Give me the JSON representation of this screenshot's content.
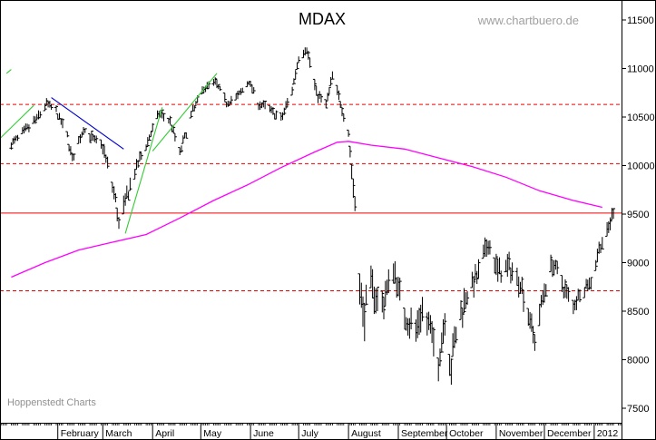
{
  "chart_data": {
    "type": "ohlc",
    "title": "MDAX",
    "watermark": "www.chartbuero.de",
    "credit": "Hoppenstedt Charts",
    "ylim": [
      7350,
      11650
    ],
    "y_ticks": [
      7500,
      8000,
      8500,
      9000,
      9500,
      10000,
      10500,
      11000,
      11500
    ],
    "month_labels": [
      "February",
      "March",
      "April",
      "May",
      "June",
      "July",
      "August",
      "September",
      "October",
      "November",
      "December",
      "2012"
    ],
    "colors": {
      "price": "#000000",
      "moving_average": "#ff00ff",
      "horizontal_levels": "#ee0000",
      "support_trend": "#33cc33",
      "resistance_trend": "#0000cc",
      "frame": "#000000"
    },
    "horizontal_levels": [
      {
        "y": 10630,
        "style": "dashed"
      },
      {
        "y": 10020,
        "style": "dashed"
      },
      {
        "y": 9510,
        "style": "solid"
      },
      {
        "y": 8710,
        "style": "dashed"
      }
    ],
    "segments": [
      {
        "kind": "resistance_trend",
        "from": [
          "2011-01-28",
          10700
        ],
        "to": [
          "2011-03-14",
          10170
        ]
      },
      {
        "kind": "support_trend",
        "from": [
          "2010-12-27",
          10280
        ],
        "to": [
          "2011-01-17",
          10620
        ]
      },
      {
        "kind": "support_trend",
        "from": [
          "2010-12-31",
          10950
        ],
        "to": [
          "2011-01-03",
          10990
        ]
      },
      {
        "kind": "support_trend",
        "from": [
          "2011-03-15",
          9300
        ],
        "to": [
          "2011-04-07",
          10600
        ]
      },
      {
        "kind": "support_trend",
        "from": [
          "2011-04-01",
          10150
        ],
        "to": [
          "2011-05-11",
          10950
        ]
      },
      {
        "kind": "horizontal_level",
        "from": [
          "2011-06-14",
          10400
        ],
        "to": [
          "2011-07-28",
          10400
        ]
      }
    ],
    "moving_average": {
      "name": "",
      "points": [
        [
          "2011-01-03",
          8850
        ],
        [
          "2011-01-24",
          9000
        ],
        [
          "2011-02-14",
          9130
        ],
        [
          "2011-03-07",
          9210
        ],
        [
          "2011-03-28",
          9290
        ],
        [
          "2011-04-18",
          9460
        ],
        [
          "2011-05-09",
          9640
        ],
        [
          "2011-05-30",
          9800
        ],
        [
          "2011-06-20",
          9980
        ],
        [
          "2011-07-11",
          10140
        ],
        [
          "2011-07-25",
          10240
        ],
        [
          "2011-08-01",
          10250
        ],
        [
          "2011-08-15",
          10210
        ],
        [
          "2011-09-05",
          10170
        ],
        [
          "2011-09-26",
          10080
        ],
        [
          "2011-10-17",
          9990
        ],
        [
          "2011-11-07",
          9880
        ],
        [
          "2011-11-28",
          9740
        ],
        [
          "2011-12-19",
          9640
        ],
        [
          "2012-01-06",
          9570
        ]
      ]
    },
    "price_anchors": [
      [
        "2011-01-03",
        10220,
        60
      ],
      [
        "2011-01-10",
        10330,
        60
      ],
      [
        "2011-01-19",
        10480,
        70
      ],
      [
        "2011-01-25",
        10640,
        60
      ],
      [
        "2011-01-31",
        10560,
        60
      ],
      [
        "2011-02-07",
        10300,
        70
      ],
      [
        "2011-02-10",
        10060,
        80
      ],
      [
        "2011-02-17",
        10380,
        60
      ],
      [
        "2011-02-24",
        10250,
        70
      ],
      [
        "2011-03-01",
        10200,
        80
      ],
      [
        "2011-03-04",
        10000,
        90
      ],
      [
        "2011-03-09",
        9650,
        110
      ],
      [
        "2011-03-11",
        9380,
        130
      ],
      [
        "2011-03-16",
        9680,
        120
      ],
      [
        "2011-03-22",
        9980,
        90
      ],
      [
        "2011-03-29",
        10250,
        70
      ],
      [
        "2011-04-05",
        10540,
        60
      ],
      [
        "2011-04-12",
        10460,
        60
      ],
      [
        "2011-04-18",
        10130,
        70
      ],
      [
        "2011-04-26",
        10560,
        60
      ],
      [
        "2011-05-03",
        10800,
        60
      ],
      [
        "2011-05-10",
        10860,
        60
      ],
      [
        "2011-05-17",
        10650,
        60
      ],
      [
        "2011-05-24",
        10710,
        60
      ],
      [
        "2011-05-31",
        10870,
        60
      ],
      [
        "2011-06-06",
        10640,
        60
      ],
      [
        "2011-06-13",
        10580,
        60
      ],
      [
        "2011-06-20",
        10470,
        70
      ],
      [
        "2011-06-27",
        10780,
        70
      ],
      [
        "2011-07-01",
        11120,
        70
      ],
      [
        "2011-07-06",
        11210,
        70
      ],
      [
        "2011-07-12",
        10750,
        80
      ],
      [
        "2011-07-18",
        10620,
        70
      ],
      [
        "2011-07-22",
        10920,
        70
      ],
      [
        "2011-07-27",
        10650,
        70
      ],
      [
        "2011-08-01",
        10340,
        80
      ],
      [
        "2011-08-03",
        9950,
        110
      ],
      [
        "2011-08-05",
        9600,
        150
      ],
      [
        "2011-08-08",
        8800,
        280
      ],
      [
        "2011-08-10",
        8450,
        280
      ],
      [
        "2011-08-15",
        8750,
        220
      ],
      [
        "2011-08-22",
        8550,
        200
      ],
      [
        "2011-08-29",
        8950,
        180
      ],
      [
        "2011-09-05",
        8450,
        180
      ],
      [
        "2011-09-12",
        8300,
        200
      ],
      [
        "2011-09-16",
        8520,
        180
      ],
      [
        "2011-09-22",
        8250,
        200
      ],
      [
        "2011-09-26",
        7960,
        200
      ],
      [
        "2011-09-30",
        8450,
        200
      ],
      [
        "2011-10-04",
        7900,
        250
      ],
      [
        "2011-10-06",
        8200,
        220
      ],
      [
        "2011-10-13",
        8660,
        180
      ],
      [
        "2011-10-20",
        8850,
        150
      ],
      [
        "2011-10-27",
        9200,
        150
      ],
      [
        "2011-11-02",
        8900,
        170
      ],
      [
        "2011-11-09",
        8950,
        150
      ],
      [
        "2011-11-16",
        8800,
        150
      ],
      [
        "2011-11-23",
        8350,
        170
      ],
      [
        "2011-11-25",
        8200,
        150
      ],
      [
        "2011-11-30",
        8650,
        150
      ],
      [
        "2011-12-06",
        9000,
        130
      ],
      [
        "2011-12-13",
        8750,
        130
      ],
      [
        "2011-12-19",
        8550,
        120
      ],
      [
        "2011-12-23",
        8700,
        110
      ],
      [
        "2011-12-30",
        8800,
        100
      ],
      [
        "2012-01-04",
        9150,
        100
      ],
      [
        "2012-01-09",
        9300,
        100
      ],
      [
        "2012-01-12",
        9480,
        90
      ],
      [
        "2012-01-13",
        9540,
        100
      ]
    ]
  }
}
